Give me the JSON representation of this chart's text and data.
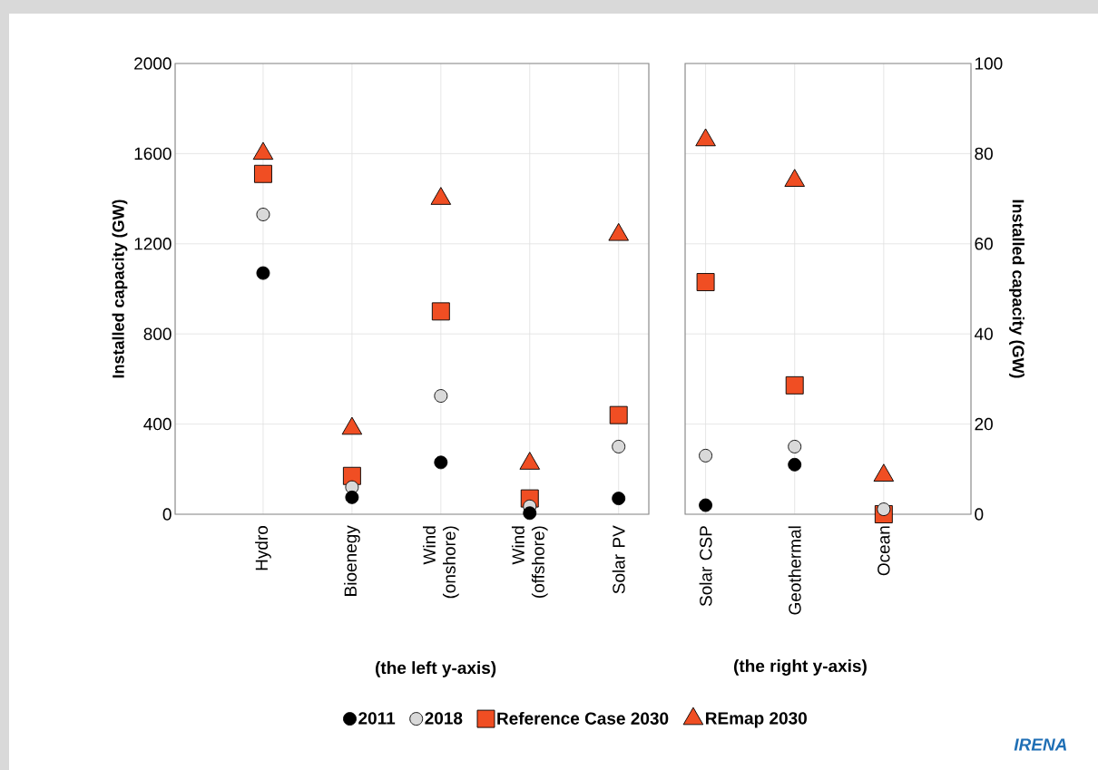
{
  "chart_data": [
    {
      "type": "scatter",
      "ylabel": "Installed capacity (GW)",
      "categories": [
        "Hydro",
        "Bioenegy",
        "Wind (onshore)",
        "Wind (offshore)",
        "Solar PV"
      ],
      "ylim": [
        0,
        2000
      ],
      "yticks": [
        0,
        400,
        800,
        1200,
        1600,
        2000
      ],
      "grid": true,
      "legend": "bottom",
      "series": [
        {
          "name": "2011",
          "color": "#000000",
          "marker": "circle",
          "values": [
            1070,
            75,
            230,
            5,
            70
          ]
        },
        {
          "name": "2018",
          "color": "#d9d9d9",
          "marker": "circle",
          "values": [
            1330,
            120,
            525,
            35,
            300
          ]
        },
        {
          "name": "Reference Case 2030",
          "color": "#f04e23",
          "marker": "square",
          "values": [
            1510,
            170,
            900,
            70,
            440
          ]
        },
        {
          "name": "REmap 2030",
          "color": "#f04e23",
          "marker": "triangle",
          "values": [
            1600,
            380,
            1400,
            225,
            1240
          ]
        }
      ],
      "annotations": [
        "(the left y-axis)"
      ]
    },
    {
      "type": "scatter",
      "y2label": "Installed capacity (GW)",
      "categories": [
        "Solar CSP",
        "Geothermal",
        "Ocean"
      ],
      "y2lim": [
        0,
        100
      ],
      "y2ticks": [
        0,
        20,
        40,
        60,
        80,
        100
      ],
      "grid": true,
      "series": [
        {
          "color": "#000000",
          "marker": "circle",
          "axis": "y2",
          "values": [
            2,
            11,
            null
          ]
        },
        {
          "color": "#d9d9d9",
          "marker": "circle",
          "axis": "y2",
          "values": [
            13,
            15,
            1.1
          ]
        },
        {
          "color": "#f04e23",
          "marker": "square",
          "axis": "y2",
          "values": [
            51.5,
            28.6,
            0
          ]
        },
        {
          "color": "#f04e23",
          "marker": "triangle",
          "axis": "y2",
          "values": [
            83,
            74,
            8.6
          ]
        }
      ],
      "annotations": [
        "(the right y-axis)",
        "IRENA"
      ]
    }
  ]
}
